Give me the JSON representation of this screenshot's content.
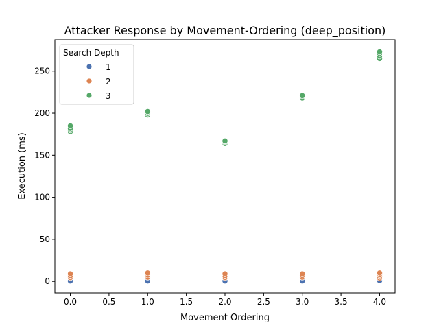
{
  "chart_data": {
    "type": "scatter",
    "title": "Attacker Response by Movement-Ordering (deep_position)",
    "xlabel": "Movement Ordering",
    "ylabel": "Execution (ms)",
    "xlim": [
      -0.2,
      4.2
    ],
    "ylim": [
      -13.7,
      287.3
    ],
    "xticks": [
      0.0,
      0.5,
      1.0,
      1.5,
      2.0,
      2.5,
      3.0,
      3.5,
      4.0
    ],
    "xtick_labels": [
      "0.0",
      "0.5",
      "1.0",
      "1.5",
      "2.0",
      "2.5",
      "3.0",
      "3.5",
      "4.0"
    ],
    "yticks": [
      0,
      50,
      100,
      150,
      200,
      250
    ],
    "ytick_labels": [
      "0",
      "50",
      "100",
      "150",
      "200",
      "250"
    ],
    "grid": false,
    "legend": {
      "title": "Search Depth",
      "placement": "top-left"
    },
    "series": [
      {
        "name": "1",
        "color": "#4c72b0",
        "points": [
          [
            0,
            0.2
          ],
          [
            0,
            0.5
          ],
          [
            1,
            0.2
          ],
          [
            1,
            0.5
          ],
          [
            2,
            0.2
          ],
          [
            2,
            0.5
          ],
          [
            3,
            0.2
          ],
          [
            3,
            0.5
          ],
          [
            4,
            0.2
          ],
          [
            4,
            0.5
          ],
          [
            4,
            0.8
          ]
        ]
      },
      {
        "name": "2",
        "color": "#dd8452",
        "points": [
          [
            0,
            4.5
          ],
          [
            0,
            6.5
          ],
          [
            0,
            9
          ],
          [
            1,
            5
          ],
          [
            1,
            7.5
          ],
          [
            1,
            10
          ],
          [
            2,
            4.5
          ],
          [
            2,
            6.5
          ],
          [
            2,
            9
          ],
          [
            3,
            5
          ],
          [
            3,
            7
          ],
          [
            3,
            9
          ],
          [
            4,
            4
          ],
          [
            4,
            6
          ],
          [
            4,
            8
          ],
          [
            4,
            10
          ]
        ]
      },
      {
        "name": "3",
        "color": "#55a868",
        "points": [
          [
            0,
            178
          ],
          [
            0,
            180
          ],
          [
            0,
            182
          ],
          [
            0,
            185
          ],
          [
            1,
            198
          ],
          [
            1,
            200
          ],
          [
            1,
            202
          ],
          [
            2,
            164
          ],
          [
            2,
            166
          ],
          [
            2,
            167
          ],
          [
            3,
            218
          ],
          [
            3,
            220
          ],
          [
            3,
            221
          ],
          [
            4,
            265
          ],
          [
            4,
            268
          ],
          [
            4,
            271
          ],
          [
            4,
            273
          ]
        ]
      }
    ]
  }
}
